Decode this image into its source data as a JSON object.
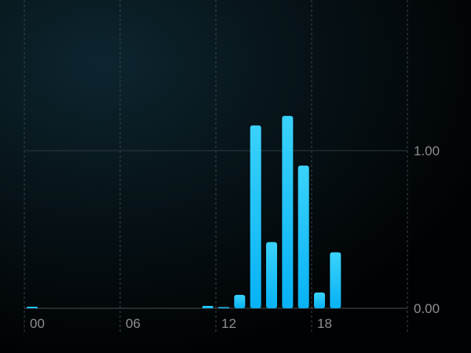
{
  "chart_data": {
    "type": "bar",
    "x": [
      0,
      1,
      2,
      3,
      4,
      5,
      6,
      7,
      8,
      9,
      10,
      11,
      12,
      13,
      14,
      15,
      16,
      17,
      18,
      19,
      20,
      21,
      22,
      23
    ],
    "values": [
      0.01,
      0,
      0,
      0,
      0,
      0,
      0,
      0,
      0,
      0,
      0,
      0.015,
      0.005,
      0.085,
      1.16,
      0.42,
      1.22,
      0.905,
      0.1,
      0.355,
      0,
      0,
      0,
      0
    ],
    "x_tick_labels": [
      "00",
      "06",
      "12",
      "18"
    ],
    "x_tick_hours": [
      0,
      6,
      12,
      18
    ],
    "y_tick_labels": [
      "0.00",
      "1.00"
    ],
    "y_ticks": [
      0,
      1
    ],
    "ylim": [
      0,
      1.3
    ],
    "xlim": [
      0,
      24
    ],
    "grid": true,
    "colors": {
      "bar_top": "#3ad2fa",
      "bar_bottom": "#07b2f5",
      "grid": "#3a4448",
      "tick_text": "#8e8e93"
    }
  }
}
